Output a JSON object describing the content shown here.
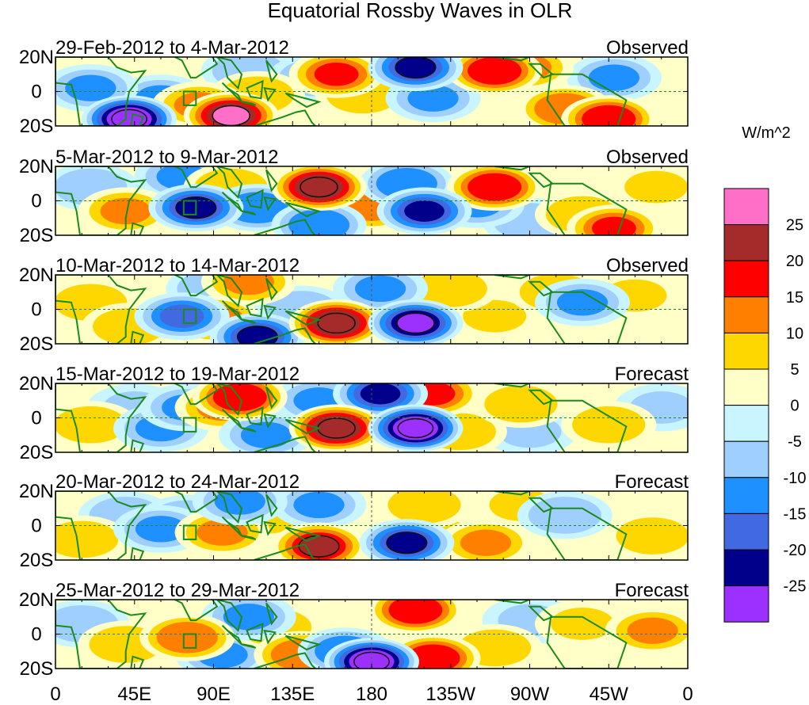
{
  "chart_data": {
    "type": "heatmap",
    "title": "Equatorial Rossby Waves in OLR",
    "units_label": "W/m^2",
    "x_ticks": [
      "0",
      "45E",
      "90E",
      "135E",
      "180",
      "135W",
      "90W",
      "45W",
      "0"
    ],
    "y_ticks": [
      "20N",
      "0",
      "20S"
    ],
    "xlim": [
      0,
      360
    ],
    "ylim": [
      -20,
      20
    ],
    "colorbar": {
      "labels": [
        "25",
        "20",
        "15",
        "10",
        "5",
        "0",
        "-5",
        "-10",
        "-15",
        "-20",
        "-25"
      ],
      "colors": [
        "#ff6ec7",
        "#a52a2a",
        "#ff0000",
        "#ff7f00",
        "#ffd700",
        "#ffffc8",
        "#c8f5ff",
        "#9ecfff",
        "#1e90ff",
        "#4169e1",
        "#00008b",
        "#9b30ff"
      ]
    },
    "panels": [
      {
        "period": "29-Feb-2012 to 4-Mar-2012",
        "status": "Observed",
        "features": [
          {
            "lon": 42,
            "lat": -16,
            "value": -28
          },
          {
            "lon": 20,
            "lat": 2,
            "value": -12
          },
          {
            "lon": 60,
            "lat": -4,
            "value": -10
          },
          {
            "lon": 82,
            "lat": -8,
            "value": 12
          },
          {
            "lon": 100,
            "lat": -14,
            "value": 26
          },
          {
            "lon": 110,
            "lat": 12,
            "value": -8
          },
          {
            "lon": 115,
            "lat": -2,
            "value": 10
          },
          {
            "lon": 148,
            "lat": 8,
            "value": -8
          },
          {
            "lon": 160,
            "lat": 10,
            "value": 16
          },
          {
            "lon": 175,
            "lat": -2,
            "value": 8
          },
          {
            "lon": 205,
            "lat": 14,
            "value": -22
          },
          {
            "lon": 215,
            "lat": -4,
            "value": -10
          },
          {
            "lon": 250,
            "lat": 12,
            "value": 20
          },
          {
            "lon": 268,
            "lat": 14,
            "value": 12
          },
          {
            "lon": 290,
            "lat": -10,
            "value": 14
          },
          {
            "lon": 315,
            "lat": -16,
            "value": 18
          },
          {
            "lon": 318,
            "lat": 8,
            "value": -10
          },
          {
            "lon": 345,
            "lat": 4,
            "value": 4
          }
        ]
      },
      {
        "period": "5-Mar-2012 to 9-Mar-2012",
        "status": "Observed",
        "features": [
          {
            "lon": 40,
            "lat": -6,
            "value": 12
          },
          {
            "lon": 20,
            "lat": 8,
            "value": -8
          },
          {
            "lon": 72,
            "lat": 14,
            "value": -10
          },
          {
            "lon": 80,
            "lat": -4,
            "value": -22
          },
          {
            "lon": 100,
            "lat": 8,
            "value": 10
          },
          {
            "lon": 115,
            "lat": -4,
            "value": -14
          },
          {
            "lon": 150,
            "lat": 8,
            "value": 24
          },
          {
            "lon": 150,
            "lat": -14,
            "value": -14
          },
          {
            "lon": 180,
            "lat": -4,
            "value": 12
          },
          {
            "lon": 200,
            "lat": 10,
            "value": -14
          },
          {
            "lon": 210,
            "lat": -6,
            "value": -20
          },
          {
            "lon": 240,
            "lat": -2,
            "value": -12
          },
          {
            "lon": 250,
            "lat": 8,
            "value": 18
          },
          {
            "lon": 270,
            "lat": -12,
            "value": -8
          },
          {
            "lon": 300,
            "lat": -8,
            "value": 8
          },
          {
            "lon": 318,
            "lat": -16,
            "value": 16
          },
          {
            "lon": 342,
            "lat": 8,
            "value": 6
          }
        ]
      },
      {
        "period": "10-Mar-2012 to 14-Mar-2012",
        "status": "Observed",
        "features": [
          {
            "lon": 20,
            "lat": 4,
            "value": 8
          },
          {
            "lon": 42,
            "lat": -10,
            "value": 10
          },
          {
            "lon": 72,
            "lat": -4,
            "value": -16
          },
          {
            "lon": 90,
            "lat": -6,
            "value": 14
          },
          {
            "lon": 90,
            "lat": 12,
            "value": -8
          },
          {
            "lon": 110,
            "lat": 16,
            "value": 12
          },
          {
            "lon": 115,
            "lat": -16,
            "value": -22
          },
          {
            "lon": 140,
            "lat": 0,
            "value": -8
          },
          {
            "lon": 160,
            "lat": -8,
            "value": 24
          },
          {
            "lon": 185,
            "lat": 12,
            "value": -12
          },
          {
            "lon": 205,
            "lat": -8,
            "value": -26
          },
          {
            "lon": 225,
            "lat": 12,
            "value": 8
          },
          {
            "lon": 250,
            "lat": -4,
            "value": 6
          },
          {
            "lon": 285,
            "lat": 10,
            "value": 10
          },
          {
            "lon": 300,
            "lat": 4,
            "value": -10
          },
          {
            "lon": 330,
            "lat": 8,
            "value": 6
          }
        ]
      },
      {
        "period": "15-Mar-2012 to 19-Mar-2012",
        "status": "Forecast",
        "features": [
          {
            "lon": 20,
            "lat": -4,
            "value": 10
          },
          {
            "lon": 45,
            "lat": 6,
            "value": -6
          },
          {
            "lon": 60,
            "lat": -6,
            "value": -10
          },
          {
            "lon": 75,
            "lat": 6,
            "value": -12
          },
          {
            "lon": 95,
            "lat": 6,
            "value": 12
          },
          {
            "lon": 105,
            "lat": 12,
            "value": 18
          },
          {
            "lon": 120,
            "lat": -10,
            "value": -12
          },
          {
            "lon": 150,
            "lat": 10,
            "value": -10
          },
          {
            "lon": 160,
            "lat": -6,
            "value": 24
          },
          {
            "lon": 185,
            "lat": 14,
            "value": -20
          },
          {
            "lon": 205,
            "lat": -6,
            "value": -28
          },
          {
            "lon": 215,
            "lat": 14,
            "value": 16
          },
          {
            "lon": 230,
            "lat": -8,
            "value": 10
          },
          {
            "lon": 265,
            "lat": 8,
            "value": 10
          },
          {
            "lon": 270,
            "lat": -8,
            "value": -6
          },
          {
            "lon": 315,
            "lat": -4,
            "value": 8
          },
          {
            "lon": 345,
            "lat": 6,
            "value": -6
          }
        ]
      },
      {
        "period": "20-Mar-2012 to 24-Mar-2012",
        "status": "Forecast",
        "features": [
          {
            "lon": 15,
            "lat": -8,
            "value": 10
          },
          {
            "lon": 40,
            "lat": 6,
            "value": -8
          },
          {
            "lon": 60,
            "lat": -2,
            "value": -10
          },
          {
            "lon": 75,
            "lat": 4,
            "value": -8
          },
          {
            "lon": 95,
            "lat": -4,
            "value": 12
          },
          {
            "lon": 105,
            "lat": 14,
            "value": -12
          },
          {
            "lon": 120,
            "lat": 6,
            "value": 10
          },
          {
            "lon": 150,
            "lat": -12,
            "value": 22
          },
          {
            "lon": 150,
            "lat": 12,
            "value": -10
          },
          {
            "lon": 200,
            "lat": -10,
            "value": -22
          },
          {
            "lon": 210,
            "lat": 12,
            "value": 10
          },
          {
            "lon": 220,
            "lat": -6,
            "value": 6
          },
          {
            "lon": 245,
            "lat": -10,
            "value": 12
          },
          {
            "lon": 265,
            "lat": 12,
            "value": 6
          },
          {
            "lon": 290,
            "lat": 6,
            "value": -8
          },
          {
            "lon": 340,
            "lat": -6,
            "value": 10
          }
        ]
      },
      {
        "period": "25-Mar-2012 to 29-Mar-2012",
        "status": "Forecast",
        "features": [
          {
            "lon": 15,
            "lat": 6,
            "value": -8
          },
          {
            "lon": 40,
            "lat": -6,
            "value": 8
          },
          {
            "lon": 75,
            "lat": -2,
            "value": 14
          },
          {
            "lon": 95,
            "lat": -12,
            "value": -10
          },
          {
            "lon": 110,
            "lat": 10,
            "value": -12
          },
          {
            "lon": 125,
            "lat": 4,
            "value": 10
          },
          {
            "lon": 140,
            "lat": -12,
            "value": 14
          },
          {
            "lon": 165,
            "lat": -10,
            "value": -14
          },
          {
            "lon": 180,
            "lat": -16,
            "value": -28
          },
          {
            "lon": 205,
            "lat": 14,
            "value": 18
          },
          {
            "lon": 215,
            "lat": -14,
            "value": 18
          },
          {
            "lon": 250,
            "lat": -8,
            "value": 8
          },
          {
            "lon": 270,
            "lat": 8,
            "value": -6
          },
          {
            "lon": 300,
            "lat": 6,
            "value": 6
          },
          {
            "lon": 340,
            "lat": 2,
            "value": 12
          }
        ]
      }
    ]
  }
}
